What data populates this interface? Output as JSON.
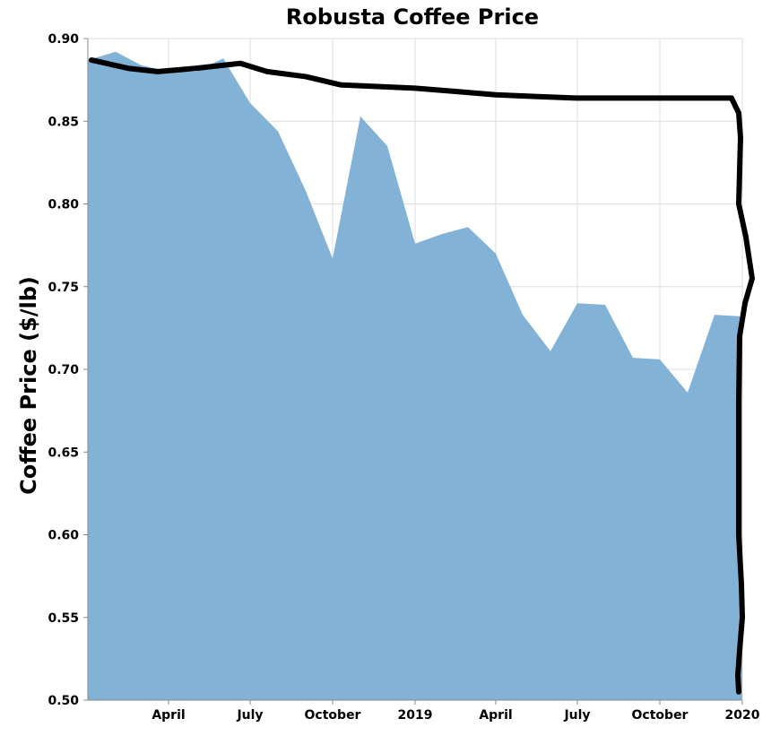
{
  "chart_data": {
    "type": "area",
    "title": "Robusta Coffee Price",
    "xlabel": "",
    "ylabel": "Coffee Price ($/lb)",
    "ylim": [
      0.5,
      0.9
    ],
    "xlim": [
      "2018-01-01",
      "2020-01-01"
    ],
    "y_ticks": [
      0.5,
      0.55,
      0.6,
      0.65,
      0.7,
      0.75,
      0.8,
      0.85,
      0.9
    ],
    "x_ticks": [
      {
        "label": "April",
        "date": "2018-04-01"
      },
      {
        "label": "July",
        "date": "2018-07-01"
      },
      {
        "label": "October",
        "date": "2018-10-01"
      },
      {
        "label": "2019",
        "date": "2019-01-01"
      },
      {
        "label": "April",
        "date": "2019-04-01"
      },
      {
        "label": "July",
        "date": "2019-07-01"
      },
      {
        "label": "October",
        "date": "2019-10-01"
      },
      {
        "label": "2020",
        "date": "2020-01-01"
      }
    ],
    "grid": true,
    "area_color": "#80b1d6",
    "x": [
      "2018-01-01",
      "2018-02-01",
      "2018-03-01",
      "2018-04-01",
      "2018-05-01",
      "2018-06-01",
      "2018-07-01",
      "2018-08-01",
      "2018-09-01",
      "2018-10-01",
      "2018-11-01",
      "2018-12-01",
      "2019-01-01",
      "2019-02-01",
      "2019-03-01",
      "2019-04-01",
      "2019-05-01",
      "2019-06-01",
      "2019-07-01",
      "2019-08-01",
      "2019-09-01",
      "2019-10-01",
      "2019-11-01",
      "2019-12-01",
      "2020-01-01"
    ],
    "values": [
      0.887,
      0.892,
      0.884,
      0.88,
      0.88,
      0.888,
      0.861,
      0.844,
      0.808,
      0.767,
      0.853,
      0.835,
      0.776,
      0.782,
      0.786,
      0.77,
      0.733,
      0.711,
      0.74,
      0.739,
      0.707,
      0.706,
      0.686,
      0.733,
      0.732
    ],
    "annotation": {
      "type": "hand-drawn-stroke",
      "color": "#000000",
      "points": [
        [
          "2018-01-05",
          0.887
        ],
        [
          "2018-02-15",
          0.882
        ],
        [
          "2018-03-20",
          0.88
        ],
        [
          "2018-05-01",
          0.882
        ],
        [
          "2018-06-20",
          0.885
        ],
        [
          "2018-07-20",
          0.88
        ],
        [
          "2018-09-01",
          0.877
        ],
        [
          "2018-10-10",
          0.872
        ],
        [
          "2018-11-20",
          0.871
        ],
        [
          "2019-01-01",
          0.87
        ],
        [
          "2019-02-15",
          0.868
        ],
        [
          "2019-04-01",
          0.866
        ],
        [
          "2019-05-15",
          0.865
        ],
        [
          "2019-07-01",
          0.864
        ],
        [
          "2019-09-01",
          0.864
        ],
        [
          "2019-11-01",
          0.864
        ],
        [
          "2019-12-20",
          0.864
        ],
        [
          "2019-12-28",
          0.855
        ],
        [
          "2019-12-30",
          0.84
        ],
        [
          "2019-12-28",
          0.8
        ],
        [
          "2020-01-05",
          0.78
        ],
        [
          "2020-01-12",
          0.755
        ],
        [
          "2020-01-04",
          0.74
        ],
        [
          "2019-12-29",
          0.72
        ],
        [
          "2019-12-28",
          0.68
        ],
        [
          "2019-12-28",
          0.6
        ],
        [
          "2019-12-31",
          0.57
        ],
        [
          "2020-01-01",
          0.55
        ],
        [
          "2019-12-29",
          0.53
        ],
        [
          "2019-12-27",
          0.515
        ],
        [
          "2019-12-28",
          0.505
        ]
      ]
    }
  }
}
